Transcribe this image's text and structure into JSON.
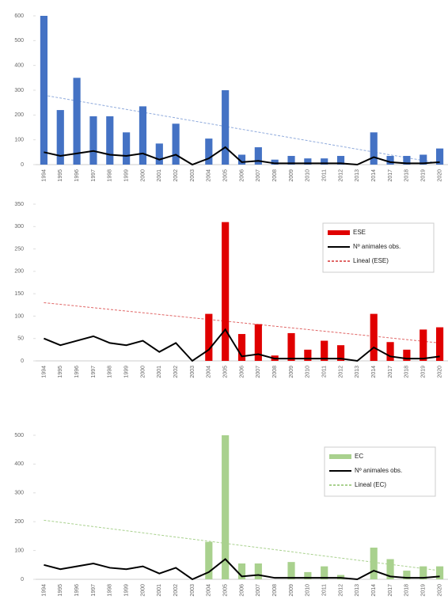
{
  "chart_data": [
    {
      "type": "bar",
      "categories": [
        "1994",
        "1995",
        "1996",
        "1997",
        "1998",
        "1999",
        "2000",
        "2001",
        "2002",
        "2003",
        "2004",
        "2005",
        "2006",
        "2007",
        "2008",
        "2009",
        "2010",
        "2011",
        "2012",
        "2013",
        "2014",
        "2017",
        "2018",
        "2019",
        "2020"
      ],
      "series": [
        {
          "color": "#4472c4",
          "type": "bar",
          "values": [
            600,
            220,
            350,
            195,
            195,
            130,
            235,
            85,
            165,
            0,
            105,
            300,
            40,
            70,
            20,
            35,
            25,
            25,
            35,
            0,
            130,
            35,
            35,
            40,
            65
          ]
        },
        {
          "color": "#000000",
          "type": "line",
          "values": [
            50,
            35,
            45,
            55,
            40,
            35,
            45,
            20,
            40,
            0,
            25,
            70,
            10,
            15,
            5,
            5,
            5,
            5,
            5,
            0,
            30,
            10,
            5,
            5,
            10
          ]
        }
      ],
      "trend": {
        "color": "#8faadc",
        "values": [
          280,
          5
        ]
      },
      "ylim": [
        0,
        600
      ],
      "yticks": [
        0,
        100,
        200,
        300,
        400,
        500,
        600
      ]
    },
    {
      "type": "bar",
      "categories": [
        "1994",
        "1995",
        "1996",
        "1997",
        "1998",
        "1999",
        "2000",
        "2001",
        "2002",
        "2003",
        "2004",
        "2005",
        "2006",
        "2007",
        "2008",
        "2009",
        "2010",
        "2011",
        "2012",
        "2013",
        "2014",
        "2017",
        "2018",
        "2019",
        "2020"
      ],
      "series": [
        {
          "name": "ESE",
          "color": "#e00000",
          "type": "bar",
          "values": [
            0,
            0,
            0,
            0,
            0,
            0,
            0,
            0,
            0,
            0,
            105,
            310,
            60,
            82,
            12,
            62,
            25,
            45,
            35,
            0,
            105,
            42,
            25,
            70,
            75
          ]
        },
        {
          "name": "Nº animales obs.",
          "color": "#000000",
          "type": "line",
          "values": [
            50,
            35,
            45,
            55,
            40,
            35,
            45,
            20,
            40,
            0,
            25,
            70,
            10,
            15,
            5,
            5,
            5,
            5,
            5,
            0,
            30,
            10,
            5,
            5,
            10
          ]
        }
      ],
      "trend": {
        "name": "Lineal (ESE)",
        "color": "#e06666",
        "values": [
          130,
          40
        ]
      },
      "legend": "upper right",
      "ylim": [
        0,
        350
      ],
      "yticks": [
        0,
        50,
        100,
        150,
        200,
        250,
        300,
        350
      ]
    },
    {
      "type": "bar",
      "categories": [
        "1994",
        "1995",
        "1996",
        "1997",
        "1998",
        "1999",
        "2000",
        "2001",
        "2002",
        "2003",
        "2004",
        "2005",
        "2006",
        "2007",
        "2008",
        "2009",
        "2010",
        "2011",
        "2012",
        "2013",
        "2014",
        "2017",
        "2018",
        "2019",
        "2020"
      ],
      "series": [
        {
          "name": "EC",
          "color": "#a9d18e",
          "type": "bar",
          "values": [
            0,
            0,
            0,
            0,
            0,
            0,
            0,
            0,
            0,
            0,
            130,
            500,
            55,
            55,
            0,
            60,
            25,
            45,
            15,
            0,
            110,
            70,
            30,
            45,
            45
          ]
        },
        {
          "name": "Nº animales obs.",
          "color": "#000000",
          "type": "line",
          "values": [
            50,
            35,
            45,
            55,
            40,
            35,
            45,
            20,
            40,
            0,
            25,
            70,
            10,
            15,
            5,
            5,
            5,
            5,
            5,
            0,
            30,
            10,
            5,
            5,
            10
          ]
        }
      ],
      "trend": {
        "name": "Lineal (EC)",
        "color": "#a9d18e",
        "values": [
          205,
          30
        ]
      },
      "legend": "upper right",
      "ylim": [
        0,
        500
      ],
      "yticks": [
        0,
        100,
        200,
        300,
        400,
        500
      ]
    }
  ]
}
